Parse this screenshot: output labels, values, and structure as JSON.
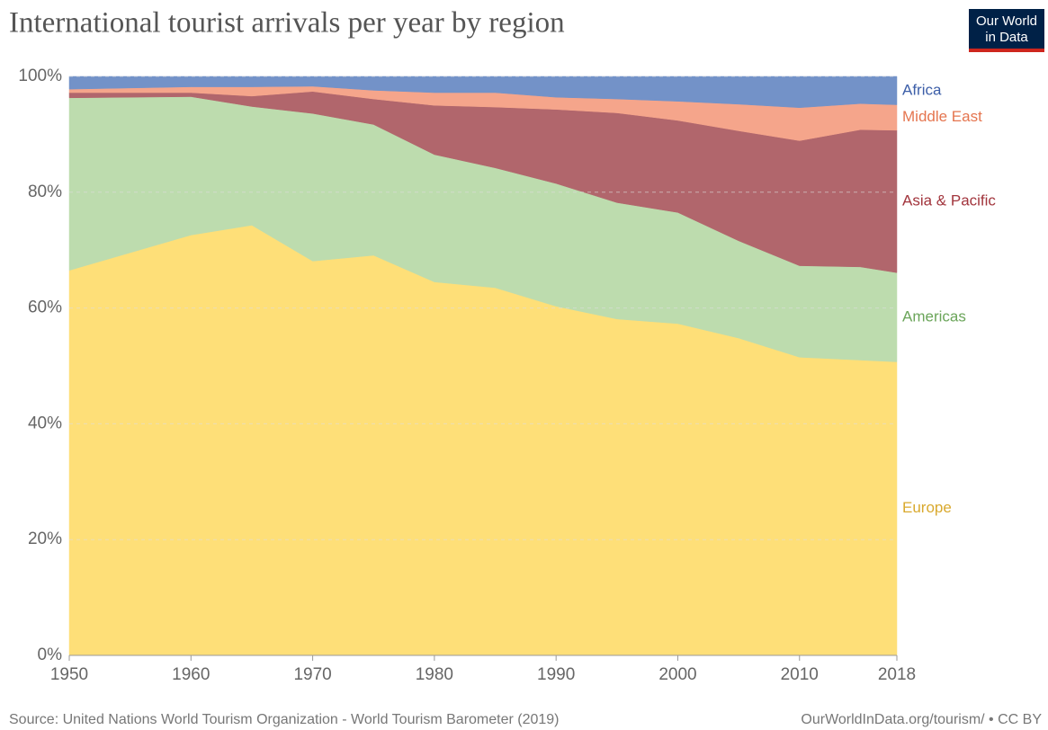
{
  "chart_data": {
    "type": "stacked_area",
    "title": "International tourist arrivals per year by region",
    "source": "Source: United Nations World Tourism Organization - World Tourism Barometer (2019)",
    "credit": "OurWorldInData.org/tourism/ • CC BY",
    "logo": [
      "Our World",
      "in Data"
    ],
    "x": [
      1950,
      1960,
      1965,
      1970,
      1975,
      1980,
      1985,
      1990,
      1995,
      2000,
      2005,
      2010,
      2015,
      2018
    ],
    "xlim": [
      1950,
      2018
    ],
    "xticks": [
      1950,
      1960,
      1970,
      1980,
      1990,
      2000,
      2010,
      2018
    ],
    "ylim": [
      0,
      100
    ],
    "yticks": [
      {
        "value": 0,
        "label": "0%"
      },
      {
        "value": 20,
        "label": "20%"
      },
      {
        "value": 40,
        "label": "40%"
      },
      {
        "value": 60,
        "label": "60%"
      },
      {
        "value": 80,
        "label": "80%"
      },
      {
        "value": 100,
        "label": "100%"
      }
    ],
    "grid": true,
    "series": [
      {
        "name": "Europe",
        "color": "#fedf78",
        "label_color": "#d9a92e",
        "values": [
          66.5,
          72.6,
          74.3,
          68.1,
          69.1,
          64.5,
          63.5,
          60.3,
          58.1,
          57.3,
          54.8,
          51.5,
          51.0,
          50.7
        ]
      },
      {
        "name": "Americas",
        "color": "#bddcae",
        "label_color": "#6ba55a",
        "values": [
          29.8,
          23.9,
          20.5,
          25.5,
          22.6,
          22.0,
          20.7,
          21.2,
          20.1,
          19.2,
          16.8,
          15.8,
          16.1,
          15.4
        ]
      },
      {
        "name": "Asia & Pacific",
        "color": "#b1666c",
        "label_color": "#a2353d",
        "values": [
          0.9,
          0.7,
          1.8,
          3.8,
          4.4,
          8.5,
          10.5,
          12.8,
          15.5,
          15.9,
          19.0,
          21.6,
          23.7,
          24.6
        ]
      },
      {
        "name": "Middle East",
        "color": "#f5a58b",
        "label_color": "#e5754f",
        "values": [
          0.6,
          1.0,
          1.6,
          0.9,
          1.5,
          2.2,
          2.5,
          2.1,
          2.4,
          3.3,
          4.6,
          5.7,
          4.5,
          4.4
        ]
      },
      {
        "name": "Africa",
        "color": "#7392c8",
        "label_color": "#3c5ea8",
        "values": [
          2.2,
          1.8,
          1.8,
          1.7,
          2.4,
          2.8,
          2.8,
          3.6,
          3.9,
          4.3,
          4.8,
          5.4,
          4.7,
          4.9
        ]
      }
    ]
  }
}
